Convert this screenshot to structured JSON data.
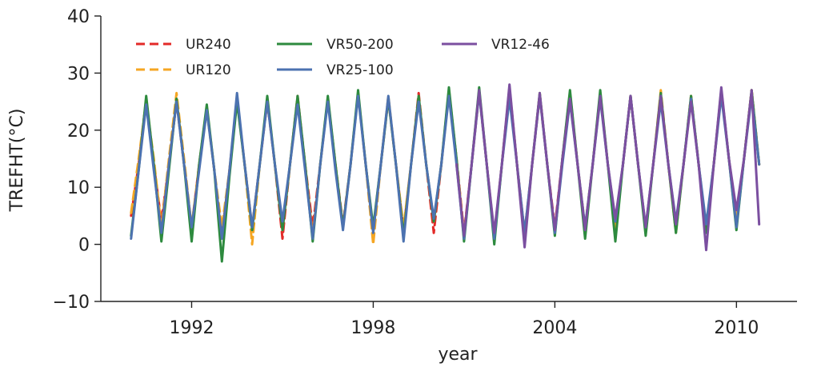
{
  "chart_data": {
    "type": "line",
    "xlabel": "year",
    "ylabel": "TREFHT(°C)",
    "xlim": [
      1989,
      2012
    ],
    "ylim": [
      -10,
      40
    ],
    "xticks": [
      1992,
      1998,
      2004,
      2010
    ],
    "yticks": [
      -10,
      0,
      10,
      20,
      30,
      40
    ],
    "x_tick_labels": [
      "1992",
      "1998",
      "2004",
      "2010"
    ],
    "y_tick_labels": [
      "−10",
      "0",
      "10",
      "20",
      "30",
      "40"
    ],
    "grid": false,
    "legend_placement": "top-left",
    "series": [
      {
        "name": "UR240",
        "color": "#e32a28",
        "dash": "dashed",
        "x": [
          1990.0,
          1990.25,
          1990.5,
          1990.75,
          1991.0,
          1991.25,
          1991.5,
          1991.75,
          1992.0,
          1992.25,
          1992.5,
          1992.75,
          1993.0,
          1993.25,
          1993.5,
          1993.75,
          1994.0,
          1994.25,
          1994.5,
          1994.75,
          1995.0,
          1995.25,
          1995.5,
          1995.75,
          1996.0,
          1996.25,
          1996.5,
          1996.75,
          1997.0,
          1997.25,
          1997.5,
          1997.75,
          1998.0,
          1998.25,
          1998.5,
          1998.75,
          1999.0,
          1999.25,
          1999.5,
          1999.75,
          2000.0,
          2000.25,
          2000.5,
          2000.75,
          2001.0,
          2001.25,
          2001.5,
          2001.75,
          2002.0,
          2002.25,
          2002.5,
          2002.75,
          2003.0,
          2003.25,
          2003.5,
          2003.75,
          2004.0,
          2004.25,
          2004.5,
          2004.75,
          2005.0,
          2005.25,
          2005.5,
          2005.75,
          2006.0,
          2006.25,
          2006.5,
          2006.75,
          2007.0,
          2007.25,
          2007.5,
          2007.75,
          2008.0,
          2008.25,
          2008.5,
          2008.75,
          2009.0,
          2009.25,
          2009.5,
          2009.75,
          2010.0,
          2010.25,
          2010.5,
          2010.75
        ],
        "y": [
          5,
          14,
          25.5,
          14,
          4,
          14,
          25,
          14,
          3,
          14,
          24,
          13,
          1.5,
          13,
          25.5,
          14,
          3,
          14,
          25,
          14,
          1,
          14,
          26,
          14,
          3,
          14,
          25.5,
          14,
          3.5,
          14,
          26.5,
          14,
          2.5,
          14,
          25.5,
          14,
          2.5,
          14,
          26.5,
          14,
          2,
          14,
          27,
          15,
          2,
          14,
          26.5,
          14,
          1.5,
          14,
          27.5,
          14,
          2,
          14,
          26,
          14,
          3,
          15,
          26.5,
          14,
          3,
          14,
          26.5,
          14,
          3,
          14,
          26,
          14,
          2.5,
          14,
          26.5,
          14,
          3,
          14,
          26,
          14,
          2.5,
          14,
          27,
          15,
          5,
          15,
          27,
          14
        ]
      },
      {
        "name": "UR120",
        "color": "#f5a623",
        "dash": "dashed",
        "x": [
          1990.0,
          1990.25,
          1990.5,
          1990.75,
          1991.0,
          1991.25,
          1991.5,
          1991.75,
          1992.0,
          1992.25,
          1992.5,
          1992.75,
          1993.0,
          1993.25,
          1993.5,
          1993.75,
          1994.0,
          1994.25,
          1994.5,
          1994.75,
          1995.0,
          1995.25,
          1995.5,
          1995.75,
          1996.0,
          1996.25,
          1996.5,
          1996.75,
          1997.0,
          1997.25,
          1997.5,
          1997.75,
          1998.0,
          1998.25,
          1998.5,
          1998.75,
          1999.0,
          1999.25,
          1999.5,
          1999.75,
          2000.0,
          2000.25,
          2000.5,
          2000.75,
          2001.0,
          2001.25,
          2001.5,
          2001.75,
          2002.0,
          2002.25,
          2002.5,
          2002.75,
          2003.0,
          2003.25,
          2003.5,
          2003.75,
          2004.0,
          2004.25,
          2004.5,
          2004.75,
          2005.0,
          2005.25,
          2005.5,
          2005.75,
          2006.0,
          2006.25,
          2006.5,
          2006.75,
          2007.0,
          2007.25,
          2007.5,
          2007.75,
          2008.0,
          2008.25,
          2008.5,
          2008.75,
          2009.0,
          2009.25,
          2009.5,
          2009.75,
          2010.0,
          2010.25,
          2010.5,
          2010.75
        ],
        "y": [
          5.5,
          15,
          25,
          15,
          3,
          15,
          26.5,
          15,
          3,
          14,
          23.5,
          13,
          3,
          13,
          25.5,
          14,
          0,
          14,
          25.5,
          14,
          2.5,
          14,
          25,
          14,
          1.5,
          14,
          25.5,
          14,
          3,
          14,
          26.5,
          14,
          0,
          14,
          26,
          14,
          3,
          14,
          26,
          14,
          4,
          14,
          26.5,
          15,
          1.5,
          14,
          27,
          14,
          1,
          14,
          27.5,
          14,
          1.5,
          14,
          26.5,
          14,
          2,
          15,
          26.5,
          14,
          3,
          14,
          26.5,
          14,
          2,
          14,
          26,
          14,
          2.5,
          14,
          27,
          14,
          2,
          14,
          26,
          14,
          2.5,
          14,
          26.5,
          15,
          4.5,
          15,
          27,
          14
        ]
      },
      {
        "name": "VR50-200",
        "color": "#2d8a3e",
        "dash": "solid",
        "x": [
          1990.0,
          1990.25,
          1990.5,
          1990.75,
          1991.0,
          1991.25,
          1991.5,
          1991.75,
          1992.0,
          1992.25,
          1992.5,
          1992.75,
          1993.0,
          1993.25,
          1993.5,
          1993.75,
          1994.0,
          1994.25,
          1994.5,
          1994.75,
          1995.0,
          1995.25,
          1995.5,
          1995.75,
          1996.0,
          1996.25,
          1996.5,
          1996.75,
          1997.0,
          1997.25,
          1997.5,
          1997.75,
          1998.0,
          1998.25,
          1998.5,
          1998.75,
          1999.0,
          1999.25,
          1999.5,
          1999.75,
          2000.0,
          2000.25,
          2000.5,
          2000.75,
          2001.0,
          2001.25,
          2001.5,
          2001.75,
          2002.0,
          2002.25,
          2002.5,
          2002.75,
          2003.0,
          2003.25,
          2003.5,
          2003.75,
          2004.0,
          2004.25,
          2004.5,
          2004.75,
          2005.0,
          2005.25,
          2005.5,
          2005.75,
          2006.0,
          2006.25,
          2006.5,
          2006.75,
          2007.0,
          2007.25,
          2007.5,
          2007.75,
          2008.0,
          2008.25,
          2008.5,
          2008.75,
          2009.0,
          2009.25,
          2009.5,
          2009.75,
          2010.0,
          2010.25,
          2010.5,
          2010.75
        ],
        "y": [
          1.5,
          13,
          26,
          14,
          0.5,
          13,
          25.5,
          14,
          0.5,
          14,
          24.5,
          13,
          -3,
          12,
          25,
          14,
          2.5,
          14,
          26,
          14,
          2.5,
          14,
          26,
          14,
          0.5,
          14,
          26,
          14,
          3,
          14,
          27,
          14,
          3,
          14,
          25.5,
          14,
          1.5,
          14,
          26,
          14,
          4,
          14,
          27.5,
          15,
          0.5,
          14,
          27.5,
          14,
          0,
          14,
          27,
          14,
          0.5,
          14,
          26.5,
          14,
          1.5,
          15,
          27,
          14,
          1,
          14,
          27,
          14,
          0.5,
          14,
          26,
          14,
          1.5,
          14,
          26.5,
          14,
          2,
          14,
          26,
          14,
          2,
          14,
          27,
          15,
          2.5,
          15,
          27,
          14
        ]
      },
      {
        "name": "VR25-100",
        "color": "#4c72b0",
        "dash": "solid",
        "x": [
          1990.0,
          1990.25,
          1990.5,
          1990.75,
          1991.0,
          1991.25,
          1991.5,
          1991.75,
          1992.0,
          1992.25,
          1992.5,
          1992.75,
          1993.0,
          1993.25,
          1993.5,
          1993.75,
          1994.0,
          1994.25,
          1994.5,
          1994.75,
          1995.0,
          1995.25,
          1995.5,
          1995.75,
          1996.0,
          1996.25,
          1996.5,
          1996.75,
          1997.0,
          1997.25,
          1997.5,
          1997.75,
          1998.0,
          1998.25,
          1998.5,
          1998.75,
          1999.0,
          1999.25,
          1999.5,
          1999.75,
          2000.0,
          2000.25,
          2000.5,
          2000.75,
          2001.0,
          2001.25,
          2001.5,
          2001.75,
          2002.0,
          2002.25,
          2002.5,
          2002.75,
          2003.0,
          2003.25,
          2003.5,
          2003.75,
          2004.0,
          2004.25,
          2004.5,
          2004.75,
          2005.0,
          2005.25,
          2005.5,
          2005.75,
          2006.0,
          2006.25,
          2006.5,
          2006.75,
          2007.0,
          2007.25,
          2007.5,
          2007.75,
          2008.0,
          2008.25,
          2008.5,
          2008.75,
          2009.0,
          2009.25,
          2009.5,
          2009.75,
          2010.0,
          2010.25,
          2010.5,
          2010.75
        ],
        "y": [
          1,
          13,
          24.5,
          13,
          2,
          14,
          25,
          14,
          3,
          13,
          23.5,
          13,
          1,
          13,
          26.5,
          14,
          3,
          14,
          25,
          14,
          4,
          14,
          24.5,
          13,
          1,
          14,
          25,
          13,
          2.5,
          14,
          26,
          14,
          2,
          14,
          26,
          14,
          0.5,
          14,
          25,
          14,
          4.5,
          14,
          26,
          14,
          1,
          14,
          26.5,
          14,
          1,
          14,
          25.5,
          14,
          2,
          14,
          26,
          14,
          2,
          14,
          25,
          14,
          3,
          14,
          25.5,
          14,
          4,
          14,
          26,
          14,
          3,
          14,
          25,
          14,
          4,
          14,
          25.5,
          14,
          3.5,
          14,
          26,
          15,
          3,
          15,
          26,
          14
        ]
      },
      {
        "name": "VR12-46",
        "color": "#7b4fa0",
        "dash": "solid",
        "x": [
          2000.75,
          2001.0,
          2001.25,
          2001.5,
          2001.75,
          2002.0,
          2002.25,
          2002.5,
          2002.75,
          2003.0,
          2003.25,
          2003.5,
          2003.75,
          2004.0,
          2004.25,
          2004.5,
          2004.75,
          2005.0,
          2005.25,
          2005.5,
          2005.75,
          2006.0,
          2006.25,
          2006.5,
          2006.75,
          2007.0,
          2007.25,
          2007.5,
          2007.75,
          2008.0,
          2008.25,
          2008.5,
          2008.75,
          2009.0,
          2009.25,
          2009.5,
          2009.75,
          2010.0,
          2010.25,
          2010.5,
          2010.75
        ],
        "y": [
          14,
          1.5,
          14,
          27,
          14,
          2,
          14,
          28,
          14,
          -0.5,
          14,
          26.5,
          14,
          2.5,
          15,
          25.5,
          14,
          2.5,
          14,
          26,
          14,
          4.5,
          14,
          26,
          14,
          3,
          14,
          26,
          14,
          3.5,
          14,
          25,
          14,
          -1,
          14,
          27.5,
          15,
          6,
          15,
          27,
          3.5
        ]
      }
    ]
  }
}
